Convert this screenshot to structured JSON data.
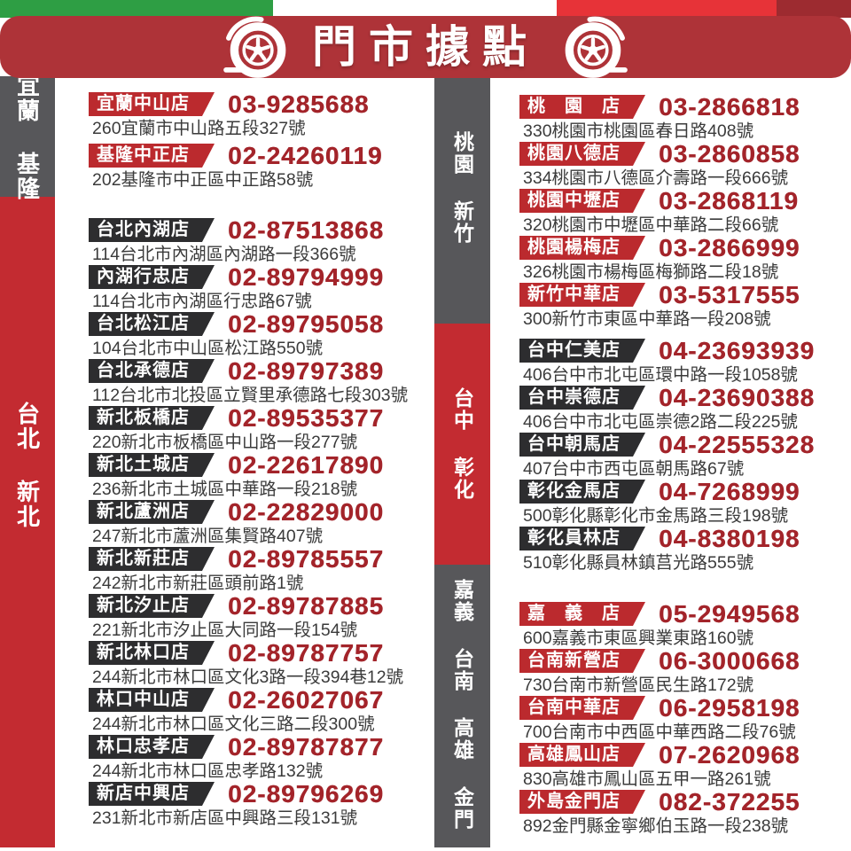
{
  "page": {
    "title": "門市據點"
  },
  "colors": {
    "header_band": "#ae3338",
    "bar_red": "#c32b31",
    "bar_gray": "#57575a",
    "badge_red": "#bb2a2e",
    "badge_black": "#2d2d2f",
    "phone_text": "#a3242a",
    "address_text": "#3b3b3b",
    "flag_green": "#2e9e44",
    "flag_red": "#e73338"
  },
  "icons": {
    "header_left": "wheel-icon",
    "header_right": "wheel-icon"
  },
  "region_bars": {
    "left": [
      {
        "label": "宜蘭 基隆",
        "style": "gray"
      },
      {
        "label": "台北 新北",
        "style": "red"
      }
    ],
    "middle": [
      {
        "label": "桃園 新竹",
        "style": "gray"
      },
      {
        "label": "台中 彰化",
        "style": "red"
      },
      {
        "label": "嘉義 台南 高雄 金門",
        "style": "gray"
      }
    ]
  },
  "store_columns": [
    {
      "side": "left",
      "groups": [
        {
          "badge_style": "red",
          "stores": [
            {
              "name": "宜蘭中山店",
              "phone": "03-9285688",
              "address": "260宜蘭市中山路五段327號"
            },
            {
              "name": "基隆中正店",
              "phone": "02-24260119",
              "address": "202基隆市中正區中正路58號"
            }
          ]
        },
        {
          "badge_style": "black",
          "stores": [
            {
              "name": "台北內湖店",
              "phone": "02-87513868",
              "address": "114台北市內湖區內湖路一段366號"
            },
            {
              "name": "內湖行忠店",
              "phone": "02-89794999",
              "address": "114台北市內湖區行忠路67號"
            },
            {
              "name": "台北松江店",
              "phone": "02-89795058",
              "address": "104台北市中山區松江路550號"
            },
            {
              "name": "台北承德店",
              "phone": "02-89797389",
              "address": "112台北市北投區立賢里承德路七段303號"
            },
            {
              "name": "新北板橋店",
              "phone": "02-89535377",
              "address": "220新北市板橋區中山路一段277號"
            },
            {
              "name": "新北土城店",
              "phone": "02-22617890",
              "address": "236新北市土城區中華路一段218號"
            },
            {
              "name": "新北蘆洲店",
              "phone": "02-22829000",
              "address": "247新北市蘆洲區集賢路407號"
            },
            {
              "name": "新北新莊店",
              "phone": "02-89785557",
              "address": "242新北市新莊區頭前路1號"
            },
            {
              "name": "新北汐止店",
              "phone": "02-89787885",
              "address": "221新北市汐止區大同路一段154號"
            },
            {
              "name": "新北林口店",
              "phone": "02-89787757",
              "address": "244新北市林口區文化3路一段394巷12號"
            },
            {
              "name": "林口中山店",
              "phone": "02-26027067",
              "address": "244新北市林口區文化三路二段300號"
            },
            {
              "name": "林口忠孝店",
              "phone": "02-89787877",
              "address": "244新北市林口區忠孝路132號"
            },
            {
              "name": "新店中興店",
              "phone": "02-89796269",
              "address": "231新北市新店區中興路三段131號"
            }
          ]
        }
      ]
    },
    {
      "side": "right",
      "groups": [
        {
          "badge_style": "red",
          "stores": [
            {
              "name": "桃　園　店",
              "phone": "03-2866818",
              "address": "330桃園市桃園區春日路408號"
            },
            {
              "name": "桃園八德店",
              "phone": "03-2860858",
              "address": "334桃園市八德區介壽路一段666號"
            },
            {
              "name": "桃園中壢店",
              "phone": "03-2868119",
              "address": "320桃園市中壢區中華路二段66號"
            },
            {
              "name": "桃園楊梅店",
              "phone": "03-2866999",
              "address": "326桃園市楊梅區梅獅路二段18號"
            },
            {
              "name": "新竹中華店",
              "phone": "03-5317555",
              "address": "300新竹市東區中華路一段208號"
            }
          ]
        },
        {
          "badge_style": "black",
          "stores": [
            {
              "name": "台中仁美店",
              "phone": "04-23693939",
              "address": "406台中市北屯區環中路一段1058號"
            },
            {
              "name": "台中崇德店",
              "phone": "04-23690388",
              "address": "406台中市北屯區崇德2路二段225號"
            },
            {
              "name": "台中朝馬店",
              "phone": "04-22555328",
              "address": "407台中市西屯區朝馬路67號"
            },
            {
              "name": "彰化金馬店",
              "phone": "04-7268999",
              "address": "500彰化縣彰化市金馬路三段198號"
            },
            {
              "name": "彰化員林店",
              "phone": "04-8380198",
              "address": "510彰化縣員林鎮莒光路555號"
            }
          ]
        },
        {
          "badge_style": "red",
          "stores": [
            {
              "name": "嘉　義　店",
              "phone": "05-2949568",
              "address": "600嘉義市東區興業東路160號"
            },
            {
              "name": "台南新營店",
              "phone": "06-3000668",
              "address": "730台南市新營區民生路172號"
            },
            {
              "name": "台南中華店",
              "phone": "06-2958198",
              "address": "700台南市中西區中華西路二段76號"
            },
            {
              "name": "高雄鳳山店",
              "phone": "07-2620968",
              "address": "830高雄市鳳山區五甲一路261號"
            },
            {
              "name": "外島金門店",
              "phone": "082-372255",
              "address": "892金門縣金寧鄉伯玉路一段238號"
            }
          ]
        }
      ]
    }
  ]
}
